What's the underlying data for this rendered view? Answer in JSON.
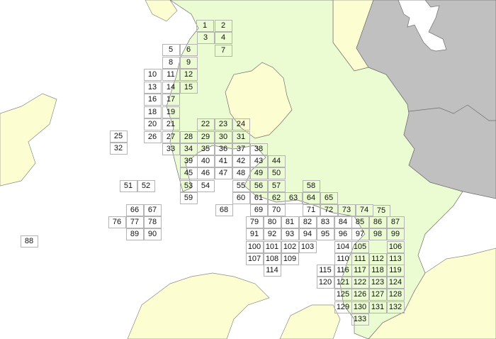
{
  "map": {
    "colors": {
      "sea": "#ffffff",
      "main_region": "#ebfcd2",
      "neighbor_region": "#fdfdd2",
      "other_region": "#c0c0c0",
      "border": "#6e6e6e",
      "grid_line": "#b4b4b4"
    },
    "grid_cells": [
      "1",
      "2",
      "3",
      "4",
      "5",
      "6",
      "7",
      "8",
      "9",
      "10",
      "11",
      "12",
      "13",
      "14",
      "15",
      "16",
      "17",
      "18",
      "19",
      "20",
      "21",
      "22",
      "23",
      "24",
      "25",
      "26",
      "27",
      "28",
      "29",
      "30",
      "31",
      "32",
      "33",
      "34",
      "35",
      "36",
      "37",
      "38",
      "39",
      "40",
      "41",
      "42",
      "43",
      "44",
      "45",
      "46",
      "47",
      "48",
      "49",
      "50",
      "51",
      "52",
      "53",
      "54",
      "55",
      "56",
      "57",
      "58",
      "59",
      "60",
      "61",
      "62",
      "63",
      "64",
      "65",
      "66",
      "67",
      "68",
      "69",
      "70",
      "71",
      "72",
      "73",
      "74",
      "75",
      "76",
      "77",
      "78",
      "79",
      "80",
      "81",
      "82",
      "83",
      "84",
      "85",
      "86",
      "87",
      "88",
      "89",
      "90",
      "91",
      "92",
      "93",
      "94",
      "95",
      "96",
      "97",
      "98",
      "99",
      "100",
      "101",
      "102",
      "103",
      "104",
      "105",
      "106",
      "107",
      "108",
      "109",
      "110",
      "111",
      "112",
      "113",
      "114",
      "115",
      "116",
      "117",
      "118",
      "119",
      "120",
      "121",
      "122",
      "123",
      "124",
      "125",
      "126",
      "127",
      "128",
      "129",
      "130",
      "131",
      "132",
      "133"
    ]
  }
}
